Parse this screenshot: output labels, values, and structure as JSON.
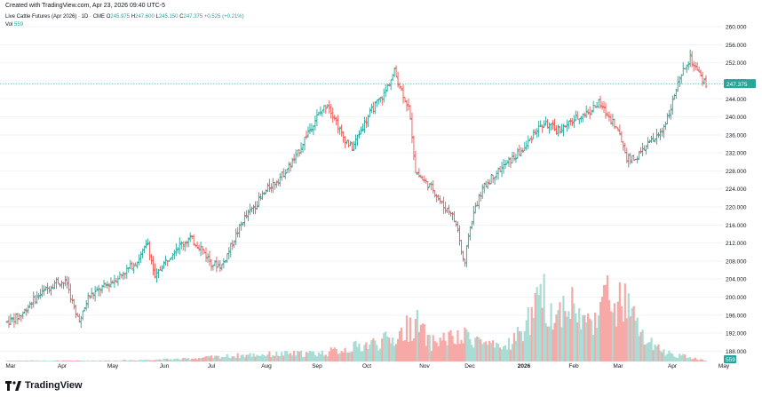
{
  "header": {
    "credit": "Created with TradingView.com, Apr 23, 2026 09:40 UTC-5"
  },
  "legend": {
    "title": "Live Cattle Futures (Apr 2026) · 1D · CME",
    "open_label": "O",
    "open": "245.975",
    "high_label": "H",
    "high": "247.600",
    "low_label": "L",
    "low": "245.150",
    "close_label": "C",
    "close": "247.375",
    "change": "+0.525 (+0.21%)",
    "vol_label": "Vol",
    "vol": "559"
  },
  "footer": {
    "brand": "TradingView",
    "logo_icon": "tradingview-logo-icon"
  },
  "colors": {
    "up": "#26a69a",
    "down": "#ef5350",
    "up_vol": "#a8dcd5",
    "down_vol": "#f7a9a7",
    "grid": "#f0f3fa",
    "axis_text": "#131722"
  },
  "chart_data": {
    "type": "ohlc",
    "title": "Live Cattle Futures (Apr 2026) · 1D · CME",
    "price_axis": {
      "ticks": [
        188.0,
        192.0,
        196.0,
        200.0,
        204.0,
        208.0,
        212.0,
        216.0,
        220.0,
        224.0,
        228.0,
        232.0,
        236.0,
        240.0,
        244.0,
        248.0,
        252.0,
        256.0,
        260.0
      ],
      "ylim": [
        185.7,
        262.0
      ]
    },
    "last_price": {
      "value": 247.375,
      "label": "247.375"
    },
    "volume_label": "559",
    "x_axis": {
      "labels": [
        "Mar",
        "Apr",
        "May",
        "Jun",
        "Jul",
        "Aug",
        "Sep",
        "Oct",
        "Nov",
        "Dec",
        "2026",
        "Feb",
        "Mar",
        "Apr",
        "May"
      ],
      "bold": [
        "2026"
      ]
    },
    "anchors": [
      [
        0,
        194.5
      ],
      [
        8,
        196
      ],
      [
        14,
        199
      ],
      [
        20,
        201
      ],
      [
        28,
        203.5
      ],
      [
        34,
        203
      ],
      [
        39,
        196
      ],
      [
        42,
        195
      ],
      [
        46,
        200
      ],
      [
        52,
        201.5
      ],
      [
        60,
        203.5
      ],
      [
        68,
        206
      ],
      [
        74,
        208
      ],
      [
        80,
        212
      ],
      [
        84,
        204
      ],
      [
        88,
        207
      ],
      [
        96,
        211
      ],
      [
        104,
        213
      ],
      [
        110,
        211
      ],
      [
        116,
        207.5
      ],
      [
        122,
        207
      ],
      [
        128,
        212
      ],
      [
        134,
        217
      ],
      [
        140,
        220
      ],
      [
        148,
        224
      ],
      [
        156,
        227
      ],
      [
        164,
        231
      ],
      [
        170,
        236
      ],
      [
        176,
        240
      ],
      [
        182,
        243
      ],
      [
        186,
        240
      ],
      [
        190,
        236
      ],
      [
        196,
        233
      ],
      [
        202,
        238
      ],
      [
        208,
        242
      ],
      [
        214,
        245
      ],
      [
        220,
        250
      ],
      [
        224,
        246
      ],
      [
        228,
        242
      ],
      [
        230,
        236
      ],
      [
        232,
        228
      ],
      [
        236,
        226
      ],
      [
        242,
        224
      ],
      [
        248,
        220
      ],
      [
        252,
        219
      ],
      [
        256,
        215
      ],
      [
        258,
        210
      ],
      [
        260,
        207
      ],
      [
        262,
        214
      ],
      [
        266,
        220
      ],
      [
        270,
        224
      ],
      [
        276,
        227
      ],
      [
        282,
        229
      ],
      [
        288,
        231
      ],
      [
        294,
        233
      ],
      [
        300,
        237
      ],
      [
        306,
        238.5
      ],
      [
        312,
        237
      ],
      [
        318,
        238
      ],
      [
        324,
        240
      ],
      [
        330,
        241
      ],
      [
        336,
        243
      ],
      [
        340,
        241
      ],
      [
        344,
        239
      ],
      [
        348,
        236
      ],
      [
        352,
        231
      ],
      [
        356,
        230.5
      ],
      [
        360,
        232
      ],
      [
        364,
        234
      ],
      [
        368,
        235
      ],
      [
        372,
        237
      ],
      [
        376,
        241
      ],
      [
        380,
        246
      ],
      [
        384,
        250
      ],
      [
        388,
        253
      ],
      [
        392,
        250
      ],
      [
        395,
        248
      ],
      [
        397,
        247.375
      ]
    ],
    "volume_anchors": [
      [
        0,
        1
      ],
      [
        60,
        1
      ],
      [
        100,
        3
      ],
      [
        140,
        8
      ],
      [
        180,
        10
      ],
      [
        200,
        18
      ],
      [
        220,
        27
      ],
      [
        232,
        47
      ],
      [
        240,
        22
      ],
      [
        250,
        28
      ],
      [
        258,
        25
      ],
      [
        262,
        32
      ],
      [
        270,
        23
      ],
      [
        280,
        14
      ],
      [
        290,
        30
      ],
      [
        300,
        60
      ],
      [
        305,
        75
      ],
      [
        312,
        50
      ],
      [
        318,
        78
      ],
      [
        324,
        55
      ],
      [
        330,
        44
      ],
      [
        338,
        72
      ],
      [
        344,
        76
      ],
      [
        346,
        62
      ],
      [
        350,
        72
      ],
      [
        354,
        58
      ],
      [
        358,
        40
      ],
      [
        364,
        22
      ],
      [
        372,
        12
      ],
      [
        380,
        8
      ],
      [
        390,
        4
      ],
      [
        397,
        1
      ]
    ]
  }
}
